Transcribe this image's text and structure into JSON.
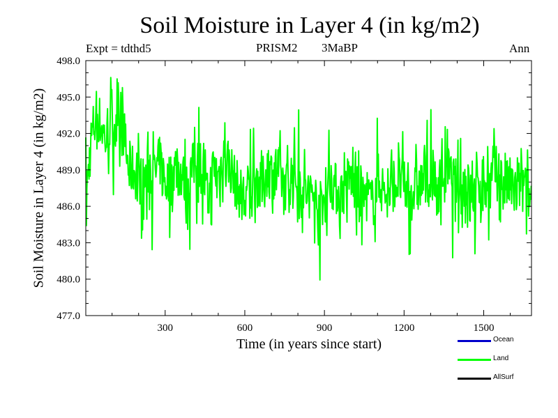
{
  "chart_data": {
    "type": "line",
    "title": "Soil Moisture in Layer 4 (in kg/m2)",
    "header_left": "Expt = tdthd5",
    "header_model": "PRISM2",
    "header_period": "3MaBP",
    "header_right": "Ann",
    "xlabel": "Time (in years since start)",
    "ylabel": "Soil Moisture in Layer 4 (in kg/m2)",
    "xlim": [
      1,
      1680
    ],
    "ylim": [
      477.0,
      498.0
    ],
    "xticks": [
      300,
      600,
      900,
      1200,
      1500
    ],
    "xtick_labels": [
      "300",
      "600",
      "900",
      "1200",
      "1500"
    ],
    "yticks": [
      477.0,
      480.0,
      483.0,
      486.0,
      489.0,
      492.0,
      495.0,
      498.0
    ],
    "ytick_labels": [
      "477.0",
      "480.0",
      "483.0",
      "486.0",
      "489.0",
      "492.0",
      "495.0",
      "498.0"
    ],
    "series": [
      {
        "name": "Ocean",
        "color": "#0000cc",
        "values": []
      },
      {
        "name": "Land",
        "color": "#00ff00",
        "x_start": 1,
        "x_step": 20,
        "values": [
          486.2,
          491.5,
          493.8,
          492.5,
          491.2,
          494.1,
          490.8,
          492.6,
          489.3,
          488.9,
          488.4,
          487.8,
          489.1,
          488.6,
          489.7,
          487.9,
          488.3,
          489.4,
          488.7,
          487.6,
          488.9,
          490.2,
          488.8,
          486.4,
          489.1,
          488.5,
          490.3,
          489.6,
          488.2,
          487.1,
          486.8,
          487.9,
          488.4,
          487.3,
          489.0,
          488.6,
          489.2,
          488.1,
          487.7,
          488.9,
          488.3,
          487.4,
          487.1,
          486.9,
          485.8,
          486.7,
          488.2,
          487.5,
          486.9,
          487.8,
          488.4,
          487.2,
          486.5,
          487.0,
          486.1,
          488.3,
          487.4,
          486.6,
          487.9,
          488.2,
          487.5,
          486.8,
          487.3,
          487.7,
          488.6,
          487.9,
          487.1,
          488.4,
          489.0,
          488.2,
          487.6,
          488.1,
          487.3,
          486.9,
          487.8,
          488.4,
          487.0,
          488.9,
          488.5,
          487.6,
          487.9,
          486.8,
          488.2,
          487.1,
          486.4
        ]
      },
      {
        "name": "AllSurf",
        "color": "#000000",
        "values": []
      }
    ],
    "legend": [
      "Ocean",
      "Land",
      "AllSurf"
    ],
    "legend_position": "bottom-right"
  }
}
